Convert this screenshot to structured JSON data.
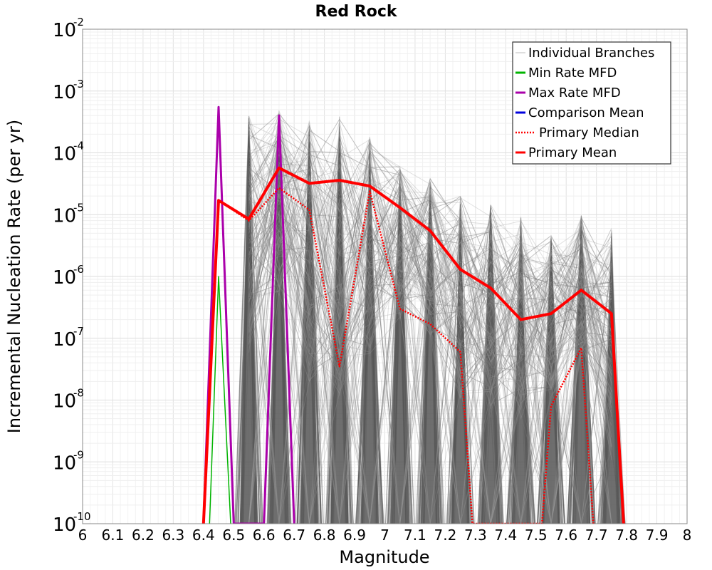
{
  "chart_data": {
    "type": "line",
    "title": "Red Rock",
    "xlabel": "Magnitude",
    "ylabel": "Incremental Nucleation Rate (per yr)",
    "xlim": [
      6,
      8
    ],
    "ylim": [
      1e-10,
      0.01
    ],
    "yscale": "log",
    "grid": true,
    "legend_position": "top-right",
    "x_ticks": [
      "6",
      "6.1",
      "6.2",
      "6.3",
      "6.4",
      "6.5",
      "6.6",
      "6.7",
      "6.8",
      "6.9",
      "7",
      "7.1",
      "7.2",
      "7.3",
      "7.4",
      "7.5",
      "7.6",
      "7.7",
      "7.8",
      "7.9",
      "8"
    ],
    "y_ticks": [
      {
        "base": "10",
        "exp": "-2"
      },
      {
        "base": "10",
        "exp": "-3"
      },
      {
        "base": "10",
        "exp": "-4"
      },
      {
        "base": "10",
        "exp": "-5"
      },
      {
        "base": "10",
        "exp": "-6"
      },
      {
        "base": "10",
        "exp": "-7"
      },
      {
        "base": "10",
        "exp": "-8"
      },
      {
        "base": "10",
        "exp": "-9"
      },
      {
        "base": "10",
        "exp": "-10"
      }
    ],
    "legend": [
      {
        "label": "Individual Branches",
        "color": "#c8c8c8",
        "style": "solid"
      },
      {
        "label": "Min Rate MFD",
        "color": "#00b400",
        "style": "solid"
      },
      {
        "label": "Max Rate MFD",
        "color": "#aa00aa",
        "style": "solid"
      },
      {
        "label": "Comparison Mean",
        "color": "#0000dd",
        "style": "solid"
      },
      {
        "label": "Primary Median",
        "color": "#ff0000",
        "style": "dotted"
      },
      {
        "label": "Primary Mean",
        "color": "#ff0000",
        "style": "solid"
      }
    ],
    "branch_envelope": {
      "name": "Individual Branches",
      "color": "#555555",
      "peaks": [
        {
          "x": 6.55,
          "upper": 0.0004,
          "lower": 5e-08
        },
        {
          "x": 6.65,
          "upper": 0.0005,
          "lower": 5e-07
        },
        {
          "x": 6.75,
          "upper": 0.0004,
          "lower": 2e-08
        },
        {
          "x": 6.85,
          "upper": 0.0004,
          "lower": 1e-08
        },
        {
          "x": 6.95,
          "upper": 0.0002,
          "lower": 5e-08
        },
        {
          "x": 7.05,
          "upper": 6e-05,
          "lower": 2e-07
        },
        {
          "x": 7.15,
          "upper": 4e-05,
          "lower": 1e-07
        },
        {
          "x": 7.25,
          "upper": 2e-05,
          "lower": 1e-08
        },
        {
          "x": 7.35,
          "upper": 1.5e-05,
          "lower": 5e-09
        },
        {
          "x": 7.45,
          "upper": 1e-05,
          "lower": 5e-09
        },
        {
          "x": 7.55,
          "upper": 5e-06,
          "lower": 1e-08
        },
        {
          "x": 7.65,
          "upper": 1e-05,
          "lower": 5e-08
        },
        {
          "x": 7.75,
          "upper": 6e-06,
          "lower": 1e-09
        }
      ]
    },
    "series": [
      {
        "name": "Max Rate MFD",
        "color": "#aa00aa",
        "style": "solid",
        "width": 3,
        "x": [
          6.4,
          6.45,
          6.5,
          6.6,
          6.65,
          6.7
        ],
        "values": [
          1e-10,
          0.00055,
          1e-10,
          1e-10,
          0.0004,
          1e-10
        ]
      },
      {
        "name": "Min Rate MFD",
        "color": "#00b400",
        "style": "solid",
        "width": 1.5,
        "x": [
          6.42,
          6.45,
          6.49
        ],
        "values": [
          1e-10,
          1e-06,
          1e-10
        ]
      },
      {
        "name": "Primary Median",
        "color": "#ff0000",
        "style": "dotted",
        "width": 2.5,
        "x": [
          6.4,
          6.45,
          6.55,
          6.65,
          6.75,
          6.85,
          6.95,
          7.05,
          7.15,
          7.25,
          7.29,
          7.52,
          7.55,
          7.65,
          7.69
        ],
        "values": [
          1e-10,
          1.7e-05,
          8e-06,
          2.7e-05,
          1.2e-05,
          3.5e-08,
          2.4e-05,
          3e-07,
          1.7e-07,
          6e-08,
          1e-10,
          1e-10,
          8e-09,
          7e-08,
          1e-10
        ]
      },
      {
        "name": "Primary Mean",
        "color": "#ff0000",
        "style": "solid",
        "width": 4,
        "x": [
          6.4,
          6.45,
          6.55,
          6.65,
          6.75,
          6.85,
          6.95,
          7.05,
          7.15,
          7.25,
          7.35,
          7.45,
          7.55,
          7.65,
          7.75,
          7.79
        ],
        "values": [
          1e-10,
          1.7e-05,
          8.5e-06,
          5.7e-05,
          3.2e-05,
          3.6e-05,
          2.9e-05,
          1.3e-05,
          5.5e-06,
          1.3e-06,
          6.5e-07,
          2e-07,
          2.5e-07,
          6e-07,
          2.5e-07,
          1e-10
        ]
      }
    ]
  }
}
